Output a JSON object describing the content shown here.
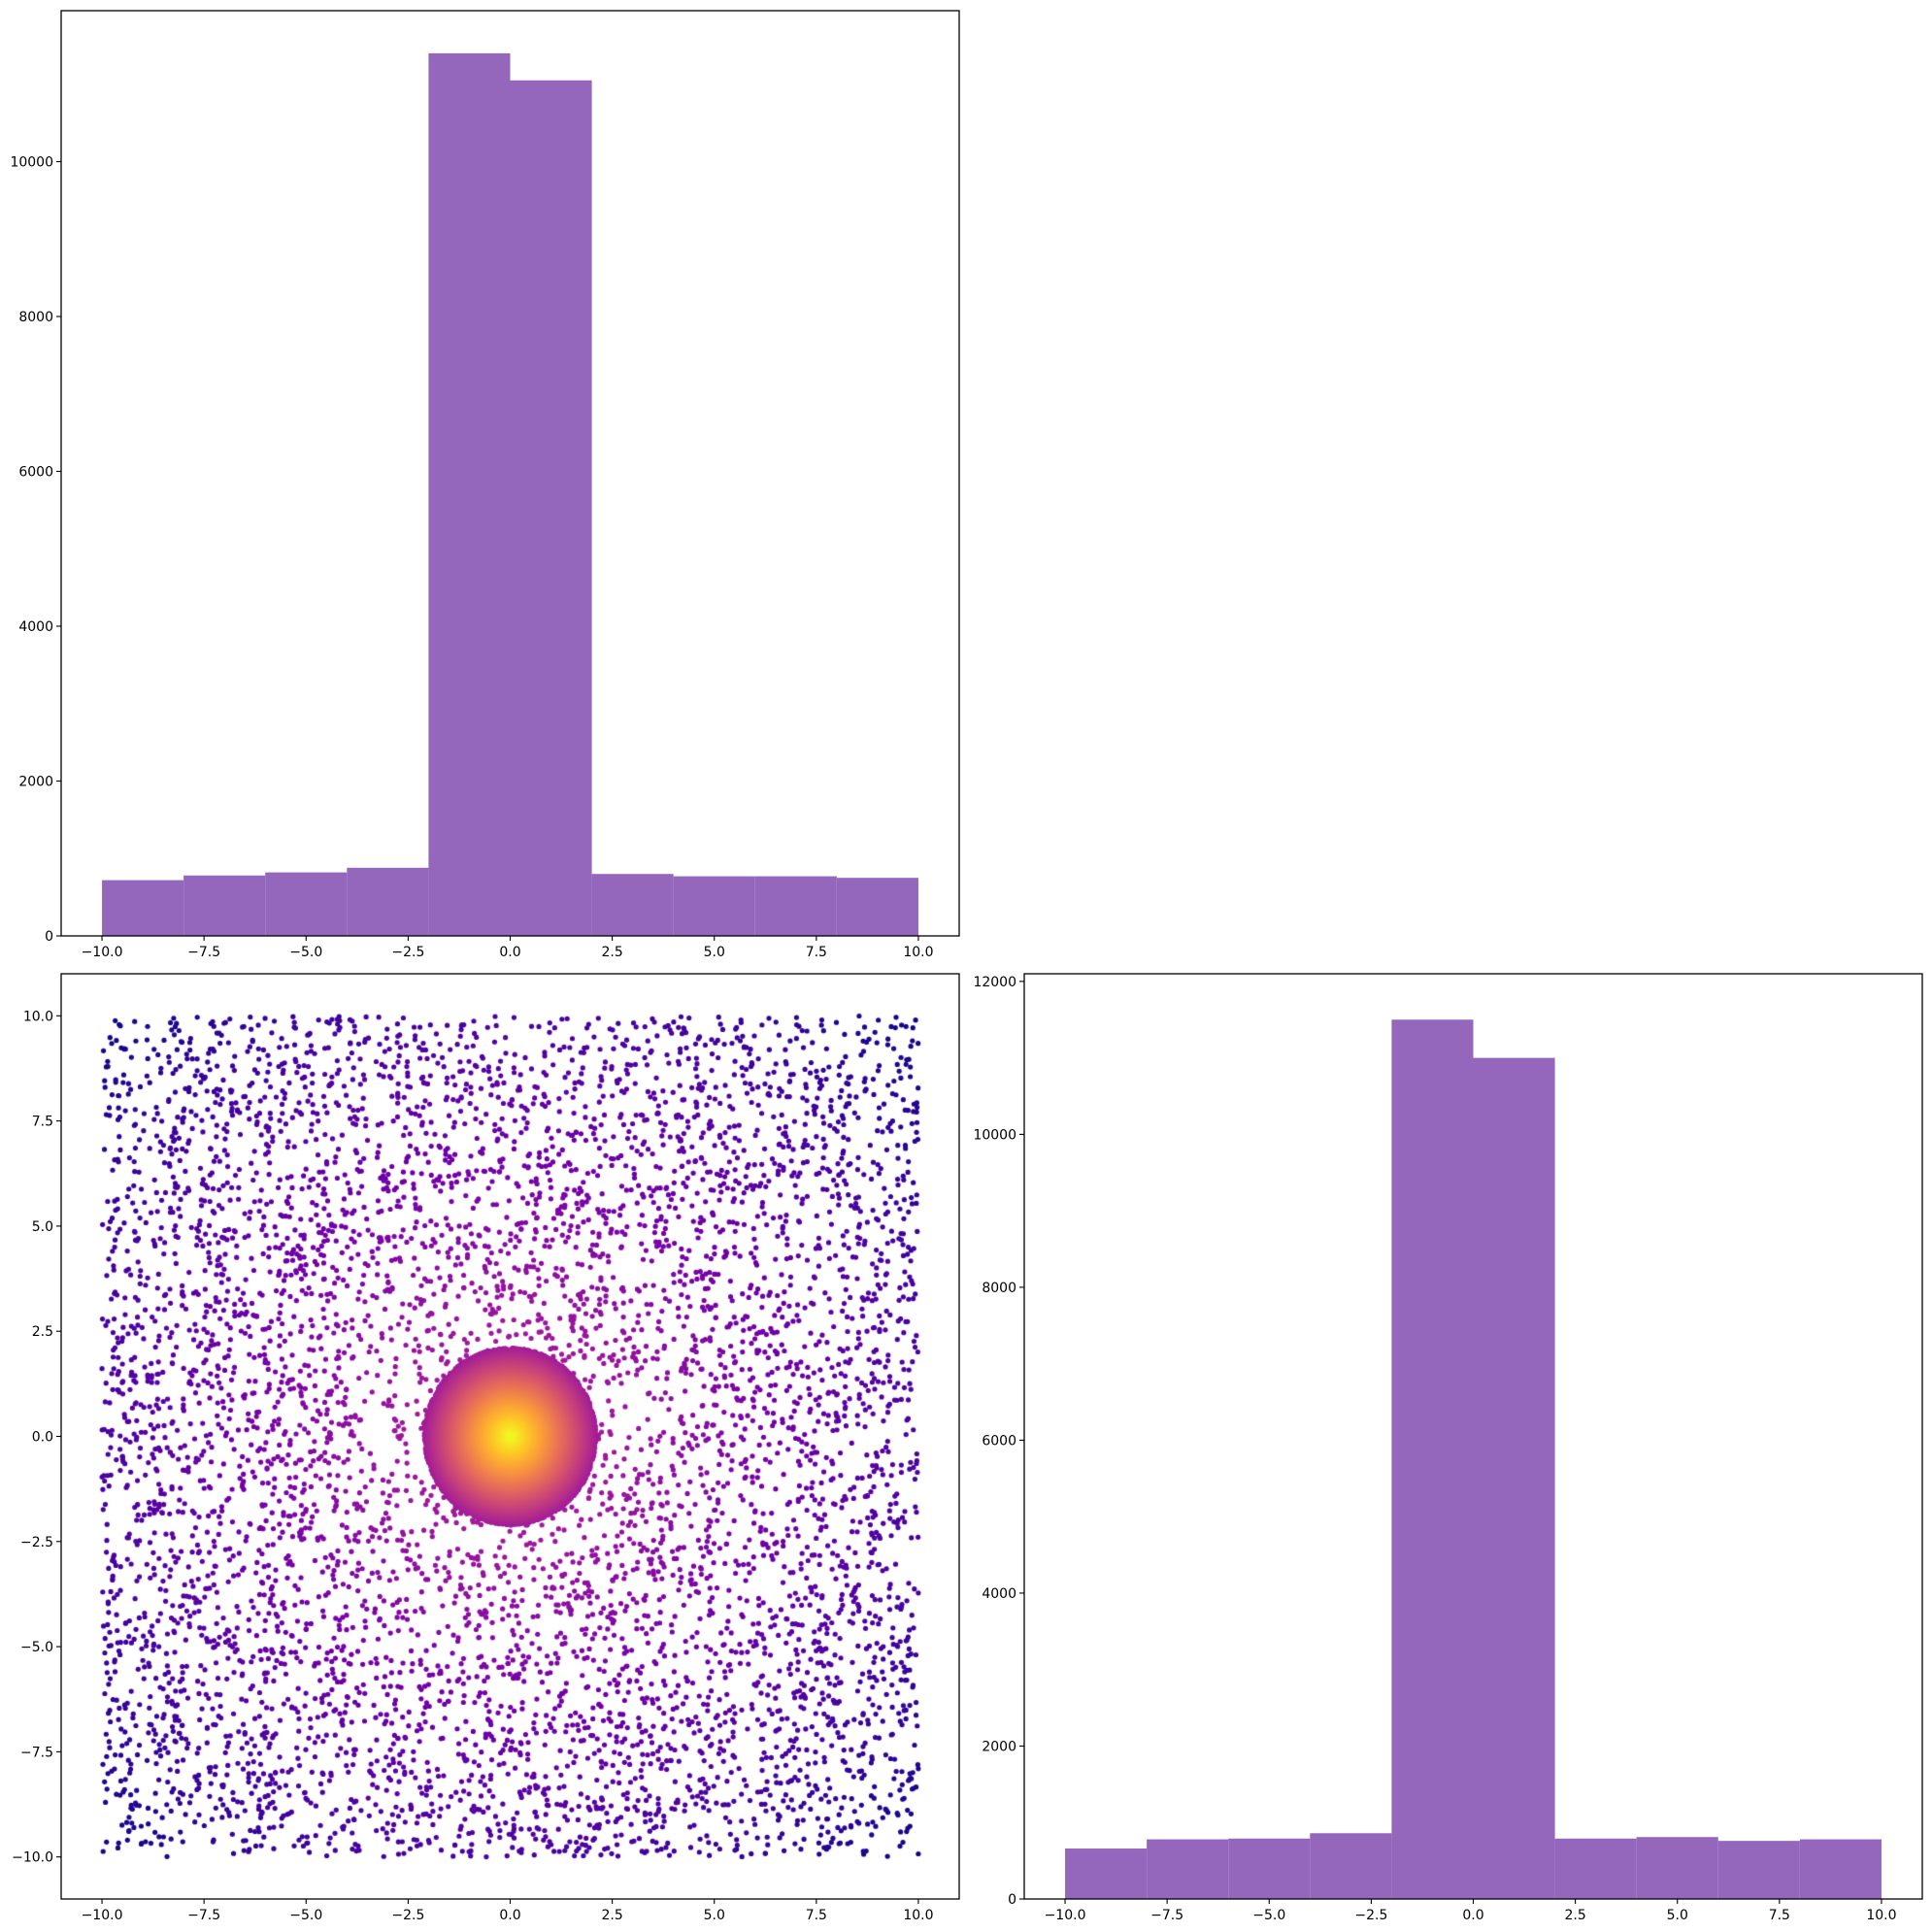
{
  "chart_data": [
    {
      "id": "hist_top",
      "type": "bar",
      "title": "",
      "xlabel": "",
      "ylabel": "",
      "bar_color": "#9467bd",
      "bin_edges": [
        -10,
        -8,
        -6,
        -4,
        -2,
        0,
        2,
        4,
        6,
        8,
        10
      ],
      "values": [
        720,
        780,
        820,
        880,
        11400,
        11050,
        800,
        770,
        770,
        750
      ],
      "xlim": [
        -11,
        11
      ],
      "ylim": [
        0,
        11950
      ],
      "xticks": [
        -10.0,
        -7.5,
        -5.0,
        -2.5,
        0.0,
        2.5,
        5.0,
        7.5,
        10.0
      ],
      "xtick_labels": [
        "−10.0",
        "−7.5",
        "−5.0",
        "−2.5",
        "0.0",
        "2.5",
        "5.0",
        "7.5",
        "10.0"
      ],
      "yticks": [
        0,
        2000,
        4000,
        6000,
        8000,
        10000
      ],
      "ytick_labels": [
        "0",
        "2000",
        "4000",
        "6000",
        "8000",
        "10000"
      ],
      "grid": false
    },
    {
      "id": "scatter",
      "type": "scatter",
      "title": "",
      "xlabel": "",
      "ylabel": "",
      "colormap": "plasma",
      "colormap_stops": [
        "#0d0887",
        "#46039f",
        "#7201a8",
        "#9c179e",
        "#bd3786",
        "#d8576b",
        "#ed7953",
        "#fb9f3a",
        "#fdca26",
        "#f0f921"
      ],
      "point_count": 30000,
      "x_range": [
        -10,
        10
      ],
      "y_range": [
        -10,
        10
      ],
      "dense_core": {
        "center": [
          0,
          0
        ],
        "radius": 2.1
      },
      "xlim": [
        -11,
        11
      ],
      "ylim": [
        -11,
        11
      ],
      "xticks": [
        -10.0,
        -7.5,
        -5.0,
        -2.5,
        0.0,
        2.5,
        5.0,
        7.5,
        10.0
      ],
      "xtick_labels": [
        "−10.0",
        "−7.5",
        "−5.0",
        "−2.5",
        "0.0",
        "2.5",
        "5.0",
        "7.5",
        "10.0"
      ],
      "yticks": [
        10.0,
        7.5,
        5.0,
        2.5,
        0.0,
        -2.5,
        -5.0,
        -7.5,
        -10.0
      ],
      "ytick_labels": [
        "10.0",
        "7.5",
        "5.0",
        "2.5",
        "0.0",
        "−2.5",
        "−5.0",
        "−7.5",
        "−10.0"
      ],
      "grid": false
    },
    {
      "id": "hist_right",
      "type": "bar",
      "title": "",
      "xlabel": "",
      "ylabel": "",
      "bar_color": "#9467bd",
      "bin_edges": [
        -10,
        -8,
        -6,
        -4,
        -2,
        0,
        2,
        4,
        6,
        8,
        10
      ],
      "values": [
        660,
        780,
        790,
        860,
        11500,
        11000,
        790,
        810,
        760,
        780
      ],
      "xlim": [
        -11,
        11
      ],
      "ylim": [
        0,
        12100
      ],
      "xticks": [
        -10.0,
        -7.5,
        -5.0,
        -2.5,
        0.0,
        2.5,
        5.0,
        7.5,
        10.0
      ],
      "xtick_labels": [
        "−10.0",
        "−7.5",
        "−5.0",
        "−2.5",
        "0.0",
        "2.5",
        "5.0",
        "7.5",
        "10.0"
      ],
      "yticks": [
        0,
        2000,
        4000,
        6000,
        8000,
        10000,
        12000
      ],
      "ytick_labels": [
        "0",
        "2000",
        "4000",
        "6000",
        "8000",
        "10000",
        "12000"
      ],
      "grid": false
    }
  ]
}
